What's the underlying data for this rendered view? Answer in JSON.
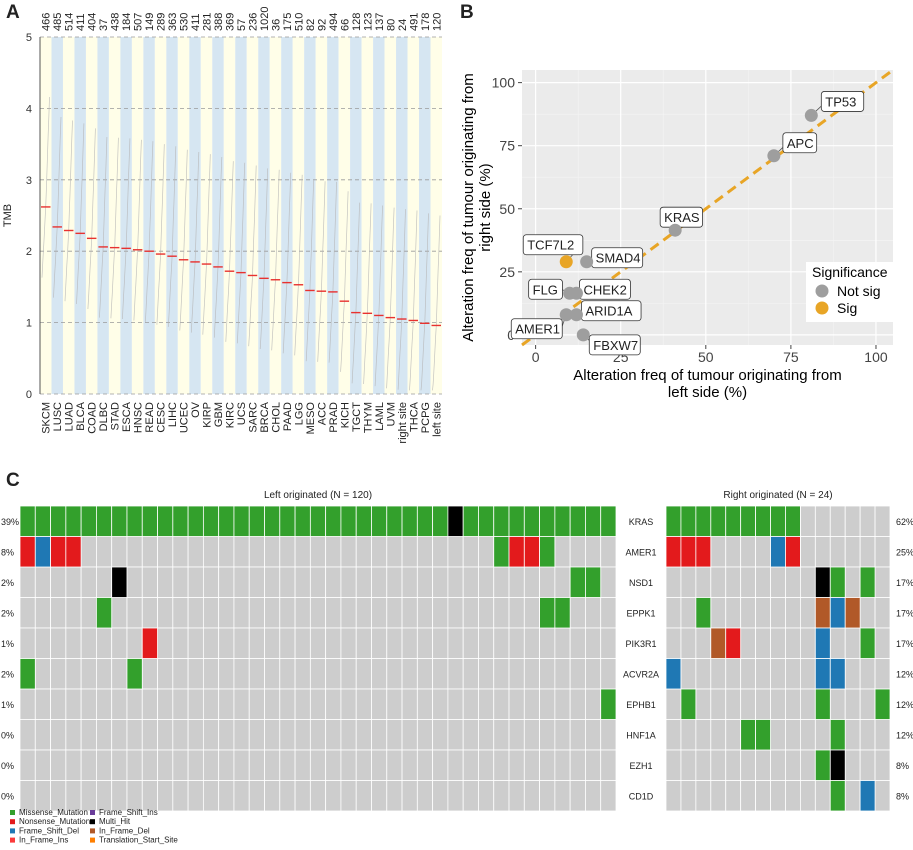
{
  "panels": {
    "a": "A",
    "b": "B",
    "c": "C"
  },
  "colors": {
    "stripe_light": "#fffee8",
    "stripe_blue": "#d6e6f2",
    "median": "#e8312f",
    "gray_point": "#9e9e9e",
    "sig_point": "#e8a526",
    "dash_line": "#e8a526",
    "oncoplot_bg": "#cdcdcd",
    "missense": "#33a02c",
    "nonsense": "#e31a1c",
    "frame_shift_del": "#1f78b4",
    "in_frame_ins": "#fb3a3a",
    "frame_shift_ins": "#6a3d9a",
    "multi_hit": "#000000",
    "in_frame_del": "#b15928",
    "translation_start_site": "#ff7f00"
  },
  "chart_data": [
    {
      "type": "scatter",
      "title": "",
      "ylabel": "TMB",
      "ylim": [
        0,
        5
      ],
      "yticks": [
        "0",
        "1",
        "2",
        "3",
        "4",
        "5"
      ],
      "categories": [
        "SKCM",
        "LUSC",
        "LUAD",
        "BLCA",
        "COAD",
        "DLBC",
        "STAD",
        "ESCA",
        "HNSC",
        "READ",
        "CESC",
        "LIHC",
        "UCEC",
        "OV",
        "KIRP",
        "GBM",
        "KIRC",
        "UCS",
        "SARC",
        "BRCA",
        "CHOL",
        "PAAD",
        "LGG",
        "MESO",
        "ACC",
        "PRAD",
        "KICH",
        "TGCT",
        "THYM",
        "LAML",
        "UVM",
        "right site",
        "THCA",
        "PCPG",
        "left site"
      ],
      "counts": [
        "466",
        "485",
        "514",
        "411",
        "404",
        "37",
        "438",
        "184",
        "507",
        "149",
        "289",
        "363",
        "530",
        "411",
        "281",
        "388",
        "369",
        "57",
        "236",
        "1020",
        "36",
        "175",
        "510",
        "82",
        "92",
        "494",
        "66",
        "128",
        "123",
        "137",
        "80",
        "24",
        "491",
        "178",
        "120"
      ],
      "medians": [
        2.62,
        2.34,
        2.29,
        2.25,
        2.18,
        2.06,
        2.05,
        2.04,
        2.02,
        2.0,
        1.96,
        1.93,
        1.88,
        1.85,
        1.82,
        1.78,
        1.72,
        1.7,
        1.66,
        1.62,
        1.6,
        1.56,
        1.53,
        1.45,
        1.44,
        1.43,
        1.3,
        1.14,
        1.13,
        1.1,
        1.07,
        1.05,
        1.03,
        0.99,
        0.96
      ]
    },
    {
      "type": "scatter",
      "xlabel": "Alteration freq of tumour originating from left side (%)",
      "xlabel_line1": "Alteration freq of tumour originating from",
      "xlabel_line2": "left side (%)",
      "ylabel_line1": "Alteration freq of tumour originating from",
      "ylabel_line2": "right side (%)",
      "xlim": [
        -4,
        105
      ],
      "ylim": [
        -4,
        105
      ],
      "xticks": [
        "0",
        "25",
        "50",
        "75",
        "100"
      ],
      "yticks": [
        "0",
        "25",
        "50",
        "75",
        "100"
      ],
      "reference_line": "y = x",
      "legend": {
        "title": "Significance",
        "items": [
          "Not sig",
          "Sig"
        ],
        "position": "right"
      },
      "points": [
        {
          "gene": "TP53",
          "x": 81,
          "y": 87,
          "sig": false
        },
        {
          "gene": "APC",
          "x": 70,
          "y": 71,
          "sig": false
        },
        {
          "gene": "KRAS",
          "x": 41,
          "y": 41.5,
          "sig": false
        },
        {
          "gene": "SMAD4",
          "x": 15,
          "y": 29,
          "sig": false
        },
        {
          "gene": "TCF7L2",
          "x": 9,
          "y": 29,
          "sig": true
        },
        {
          "gene": "FLG",
          "x": 10,
          "y": 16.5,
          "sig": false
        },
        {
          "gene": "CHEK2",
          "x": 12,
          "y": 16.5,
          "sig": false
        },
        {
          "gene": "ARID1A",
          "x": 12,
          "y": 8,
          "sig": false
        },
        {
          "gene": "AMER1",
          "x": 9,
          "y": 8,
          "sig": false
        },
        {
          "gene": "FBXW7",
          "x": 14,
          "y": 0,
          "sig": false
        }
      ]
    },
    {
      "type": "heatmap",
      "title_left": "Left originated (N = 120)",
      "title_right": "Right originated (N = 24)",
      "genes": [
        "KRAS",
        "AMER1",
        "NSD1",
        "EPPK1",
        "PIK3R1",
        "ACVR2A",
        "EPHB1",
        "HNF1A",
        "EZH1",
        "CD1D"
      ],
      "left_pct": [
        "39%",
        "8%",
        "2%",
        "2%",
        "1%",
        "2%",
        "1%",
        "0%",
        "0%",
        "0%"
      ],
      "right_pct": [
        "62%",
        "25%",
        "17%",
        "17%",
        "17%",
        "12%",
        "12%",
        "12%",
        "8%",
        "8%"
      ],
      "left_columns": 39,
      "right_columns": 15,
      "left_cells": [
        {
          "row": 0,
          "start": 0,
          "end": 28,
          "type": "missense"
        },
        {
          "row": 0,
          "start": 28,
          "end": 29,
          "type": "multi_hit"
        },
        {
          "row": 0,
          "start": 29,
          "end": 31,
          "type": "missense"
        },
        {
          "row": 0,
          "start": 31,
          "end": 39,
          "type": "missense"
        },
        {
          "row": 1,
          "start": 0,
          "end": 1,
          "type": "nonsense"
        },
        {
          "row": 1,
          "start": 1,
          "end": 2,
          "type": "frame_shift_del"
        },
        {
          "row": 1,
          "start": 2,
          "end": 4,
          "type": "nonsense"
        },
        {
          "row": 1,
          "start": 31,
          "end": 32,
          "type": "missense"
        },
        {
          "row": 1,
          "start": 32,
          "end": 34,
          "type": "nonsense"
        },
        {
          "row": 1,
          "start": 34,
          "end": 35,
          "type": "missense"
        },
        {
          "row": 2,
          "start": 6,
          "end": 7,
          "type": "multi_hit"
        },
        {
          "row": 2,
          "start": 36,
          "end": 38,
          "type": "missense"
        },
        {
          "row": 3,
          "start": 5,
          "end": 6,
          "type": "missense"
        },
        {
          "row": 3,
          "start": 34,
          "end": 36,
          "type": "missense"
        },
        {
          "row": 4,
          "start": 8,
          "end": 9,
          "type": "nonsense"
        },
        {
          "row": 5,
          "start": 0,
          "end": 1,
          "type": "missense"
        },
        {
          "row": 5,
          "start": 7,
          "end": 8,
          "type": "missense"
        },
        {
          "row": 6,
          "start": 38,
          "end": 39,
          "type": "missense"
        }
      ],
      "right_cells": [
        {
          "row": 0,
          "start": 0,
          "end": 9,
          "type": "missense"
        },
        {
          "row": 1,
          "start": 0,
          "end": 3,
          "type": "nonsense"
        },
        {
          "row": 1,
          "start": 7,
          "end": 8,
          "type": "frame_shift_del"
        },
        {
          "row": 1,
          "start": 8,
          "end": 9,
          "type": "nonsense"
        },
        {
          "row": 2,
          "start": 10,
          "end": 11,
          "type": "multi_hit"
        },
        {
          "row": 2,
          "start": 11,
          "end": 12,
          "type": "missense"
        },
        {
          "row": 2,
          "start": 13,
          "end": 14,
          "type": "missense"
        },
        {
          "row": 3,
          "start": 2,
          "end": 3,
          "type": "missense"
        },
        {
          "row": 3,
          "start": 10,
          "end": 11,
          "type": "in_frame_del"
        },
        {
          "row": 3,
          "start": 11,
          "end": 12,
          "type": "frame_shift_del"
        },
        {
          "row": 3,
          "start": 12,
          "end": 13,
          "type": "in_frame_del"
        },
        {
          "row": 4,
          "start": 3,
          "end": 4,
          "type": "in_frame_del"
        },
        {
          "row": 4,
          "start": 4,
          "end": 5,
          "type": "nonsense"
        },
        {
          "row": 4,
          "start": 10,
          "end": 11,
          "type": "frame_shift_del"
        },
        {
          "row": 4,
          "start": 13,
          "end": 14,
          "type": "missense"
        },
        {
          "row": 5,
          "start": 0,
          "end": 1,
          "type": "frame_shift_del"
        },
        {
          "row": 5,
          "start": 10,
          "end": 12,
          "type": "frame_shift_del"
        },
        {
          "row": 6,
          "start": 1,
          "end": 2,
          "type": "missense"
        },
        {
          "row": 6,
          "start": 10,
          "end": 11,
          "type": "missense"
        },
        {
          "row": 6,
          "start": 14,
          "end": 15,
          "type": "missense"
        },
        {
          "row": 7,
          "start": 5,
          "end": 7,
          "type": "missense"
        },
        {
          "row": 7,
          "start": 11,
          "end": 12,
          "type": "missense"
        },
        {
          "row": 8,
          "start": 10,
          "end": 11,
          "type": "missense"
        },
        {
          "row": 8,
          "start": 11,
          "end": 12,
          "type": "multi_hit"
        },
        {
          "row": 9,
          "start": 11,
          "end": 12,
          "type": "missense"
        },
        {
          "row": 9,
          "start": 13,
          "end": 14,
          "type": "frame_shift_del"
        }
      ],
      "legend": [
        {
          "label": "Missense_Mutation",
          "type": "missense"
        },
        {
          "label": "Nonsense_Mutation",
          "type": "nonsense"
        },
        {
          "label": "Frame_Shift_Del",
          "type": "frame_shift_del"
        },
        {
          "label": "In_Frame_Ins",
          "type": "in_frame_ins"
        },
        {
          "label": "Frame_Shift_Ins",
          "type": "frame_shift_ins"
        },
        {
          "label": "Multi_Hit",
          "type": "multi_hit"
        },
        {
          "label": "In_Frame_Del",
          "type": "in_frame_del"
        },
        {
          "label": "Translation_Start_Site",
          "type": "translation_start_site"
        }
      ]
    }
  ]
}
